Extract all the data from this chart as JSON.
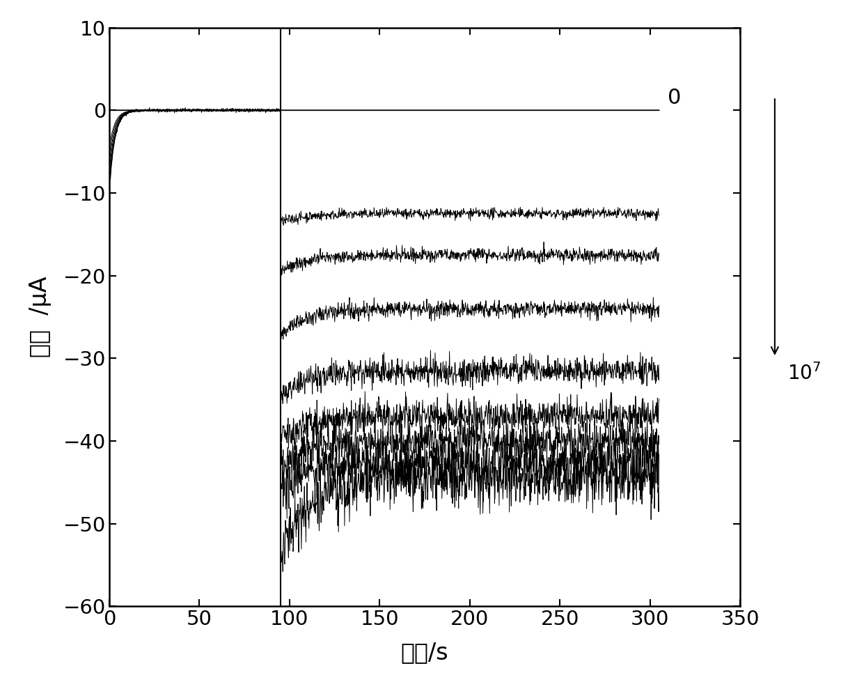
{
  "xlim": [
    0,
    350
  ],
  "ylim": [
    -60,
    10
  ],
  "xticks": [
    0,
    50,
    100,
    150,
    200,
    250,
    300,
    350
  ],
  "yticks": [
    -60,
    -50,
    -40,
    -30,
    -20,
    -10,
    0,
    10
  ],
  "xlabel": "时间/s",
  "ylabel": "电流  /μA",
  "label_0": "0",
  "label_107": "10⁷",
  "t_switch": 95,
  "n_curves": 8,
  "steady_values": [
    -12.5,
    -17.5,
    -24.0,
    -31.5,
    -37.0,
    -40.0,
    -42.5,
    -44.5
  ],
  "pre_initial": [
    -4.5,
    -5.5,
    -6.5,
    -7.5,
    -8.5,
    -9.0,
    -9.5,
    -10.0
  ],
  "post_spike": [
    -13.5,
    -19.5,
    -27.0,
    -34.5,
    -40.0,
    -43.5,
    -46.0,
    -54.0
  ],
  "noise_amp": [
    0.3,
    0.4,
    0.5,
    0.8,
    1.0,
    1.2,
    1.5,
    1.8
  ],
  "tau_pre": 3.0,
  "tau_post": 15.0,
  "background_color": "#ffffff",
  "line_color": "#000000"
}
